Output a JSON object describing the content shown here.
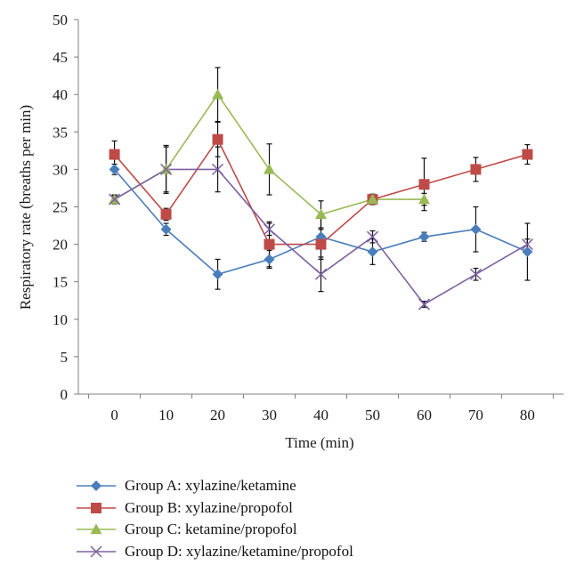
{
  "chart_data": {
    "type": "line",
    "title": "",
    "xlabel": "Time (min)",
    "ylabel": "Respiratory rate (breaths per min)",
    "x": [
      0,
      10,
      20,
      30,
      40,
      50,
      60,
      70,
      80
    ],
    "xlim": [
      -7,
      87
    ],
    "ylim": [
      0,
      50
    ],
    "x_ticks": [
      0,
      10,
      20,
      30,
      40,
      50,
      60,
      70,
      80
    ],
    "y_ticks": [
      0,
      5,
      10,
      15,
      20,
      25,
      30,
      35,
      40,
      45,
      50
    ],
    "grid": false,
    "legend_position": "bottom",
    "series": [
      {
        "name": "Group A: xylazine/ketamine",
        "color": "#4a7ebb",
        "marker": "diamond",
        "x": [
          0,
          10,
          20,
          30,
          40,
          50,
          60,
          70,
          80
        ],
        "values": [
          30,
          22,
          16,
          18,
          21,
          19,
          21,
          22,
          19
        ],
        "error": [
          0.7,
          0.8,
          2,
          1.2,
          3,
          1.7,
          0.6,
          3,
          3.8
        ]
      },
      {
        "name": "Group B: xylazine/propofol",
        "color": "#be4b48",
        "marker": "square",
        "x": [
          0,
          10,
          20,
          30,
          40,
          50,
          60,
          70,
          80
        ],
        "values": [
          32,
          24,
          34,
          20,
          20,
          26,
          28,
          30,
          32
        ],
        "error": [
          1.8,
          0.8,
          2.3,
          3,
          2,
          0.7,
          3.5,
          1.6,
          1.3
        ]
      },
      {
        "name": "Group C: ketamine/propofol",
        "color": "#98b954",
        "marker": "triangle",
        "x": [
          0,
          10,
          20,
          30,
          40,
          50,
          60
        ],
        "values": [
          26,
          30,
          40,
          30,
          24,
          26,
          26
        ],
        "error": [
          0.6,
          3,
          3.6,
          3.4,
          1.8,
          0.5,
          0.8
        ]
      },
      {
        "name": "Group D: xylazine/ketamine/propofol",
        "color": "#7d60a0",
        "marker": "x",
        "x": [
          0,
          10,
          20,
          30,
          40,
          50,
          60,
          70,
          80
        ],
        "values": [
          26,
          30,
          30,
          22,
          16,
          21,
          12,
          16,
          20
        ],
        "error": [
          0.5,
          3.2,
          3,
          0.8,
          2.3,
          0.8,
          0.4,
          0.8,
          0.7
        ]
      }
    ]
  }
}
